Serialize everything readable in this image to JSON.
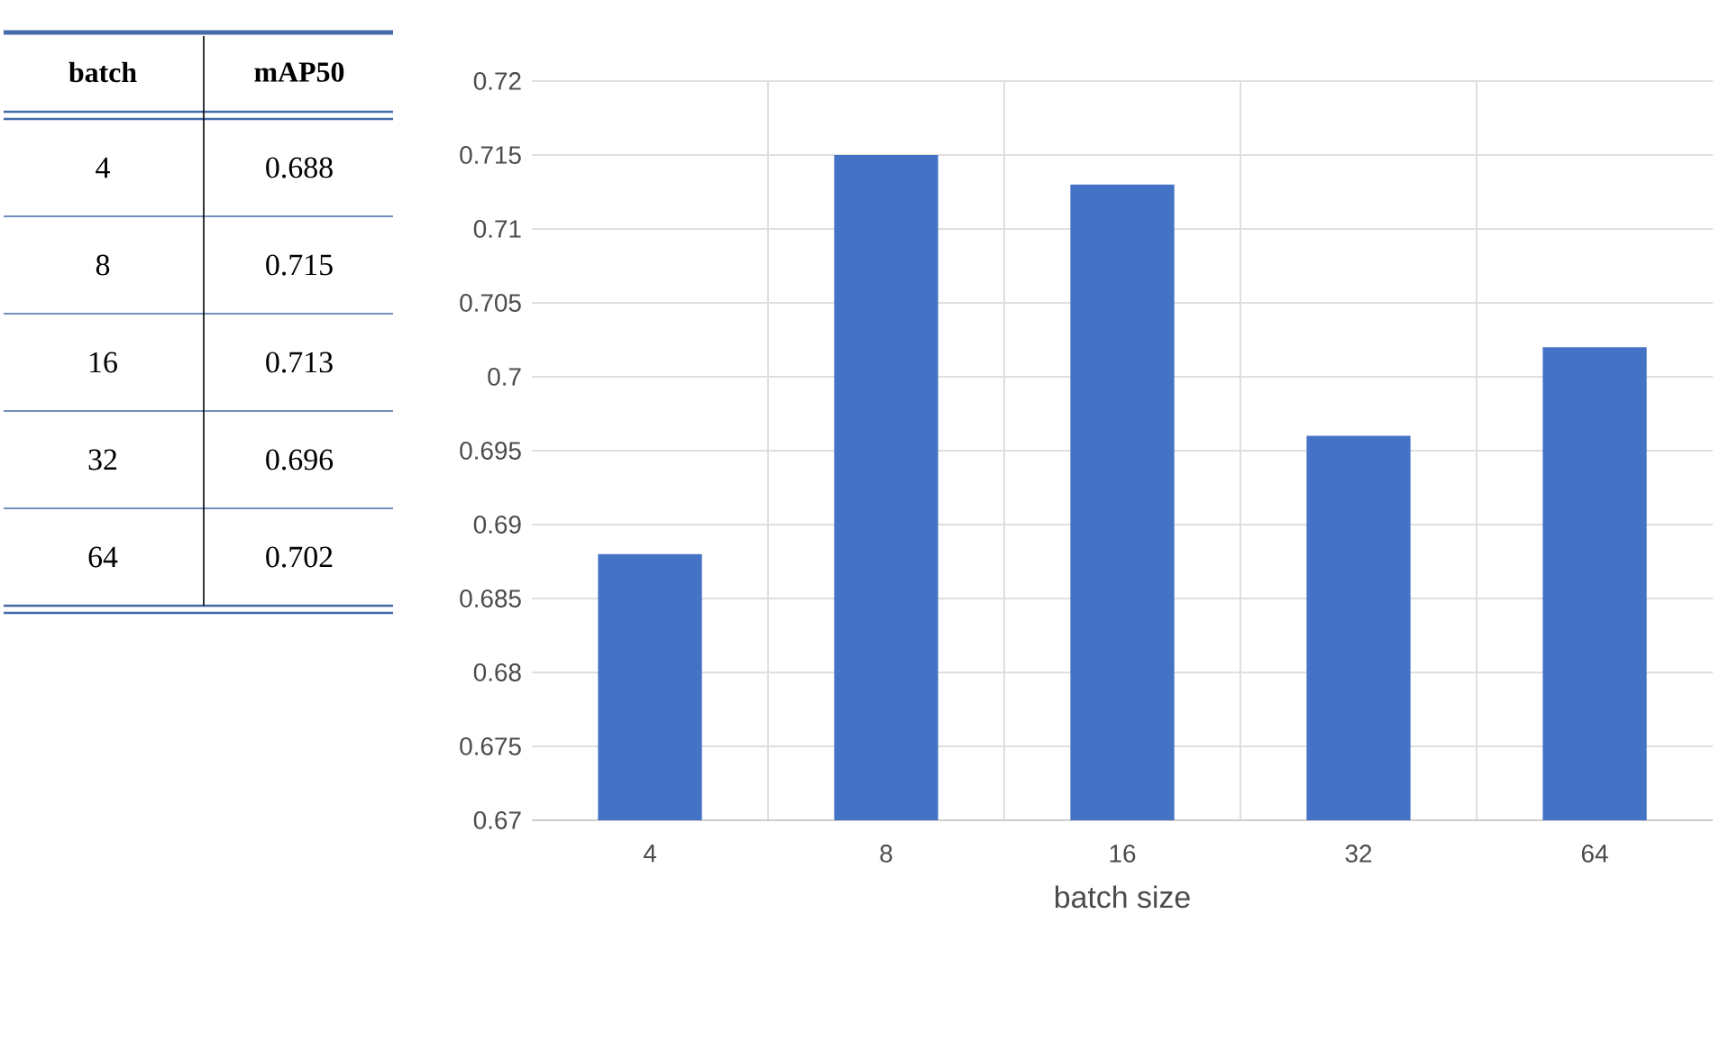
{
  "chart_data": [
    {
      "type": "other",
      "annotations": [
        "batch",
        "mAP50",
        "4",
        "0.688",
        "8",
        "0.715",
        "16",
        "0.713",
        "32",
        "0.696",
        "64",
        "0.702"
      ]
    },
    {
      "type": "bar",
      "xlabel": "batch size",
      "categories": [
        "4",
        "8",
        "16",
        "32",
        "64"
      ],
      "values": [
        0.688,
        0.715,
        0.713,
        0.696,
        0.702
      ],
      "color": "#4472c4",
      "ylim": [
        0.67,
        0.72
      ],
      "yticks": [
        0.67,
        0.675,
        0.68,
        0.685,
        0.69,
        0.695,
        0.7,
        0.705,
        0.71,
        0.715,
        0.72
      ],
      "grid": true
    }
  ]
}
